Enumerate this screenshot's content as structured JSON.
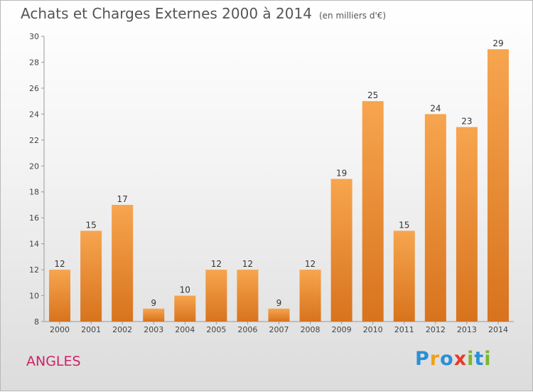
{
  "title": "Achats et Charges Externes 2000 à 2014",
  "subtitle": "(en milliers d'€)",
  "commune": "ANGLES",
  "logo": {
    "letters": [
      "P",
      "r",
      "o",
      "x",
      "i",
      "t",
      "i"
    ],
    "colors": [
      "#2a8fd6",
      "#f0a020",
      "#2a8fd6",
      "#e63a2a",
      "#7ab82c",
      "#2a8fd6",
      "#7ab82c"
    ]
  },
  "chart_data": {
    "type": "bar",
    "categories": [
      "2000",
      "2001",
      "2002",
      "2003",
      "2004",
      "2005",
      "2006",
      "2007",
      "2008",
      "2009",
      "2010",
      "2011",
      "2012",
      "2013",
      "2014"
    ],
    "values": [
      12,
      15,
      17,
      9,
      10,
      12,
      12,
      9,
      12,
      19,
      25,
      15,
      24,
      23,
      29
    ],
    "ylim": [
      8,
      30
    ],
    "yticks": [
      8,
      10,
      12,
      14,
      16,
      18,
      20,
      22,
      24,
      26,
      28,
      30
    ],
    "grid": false,
    "bar_color_top": "#f7a54f",
    "bar_color_bottom": "#d8731d"
  }
}
